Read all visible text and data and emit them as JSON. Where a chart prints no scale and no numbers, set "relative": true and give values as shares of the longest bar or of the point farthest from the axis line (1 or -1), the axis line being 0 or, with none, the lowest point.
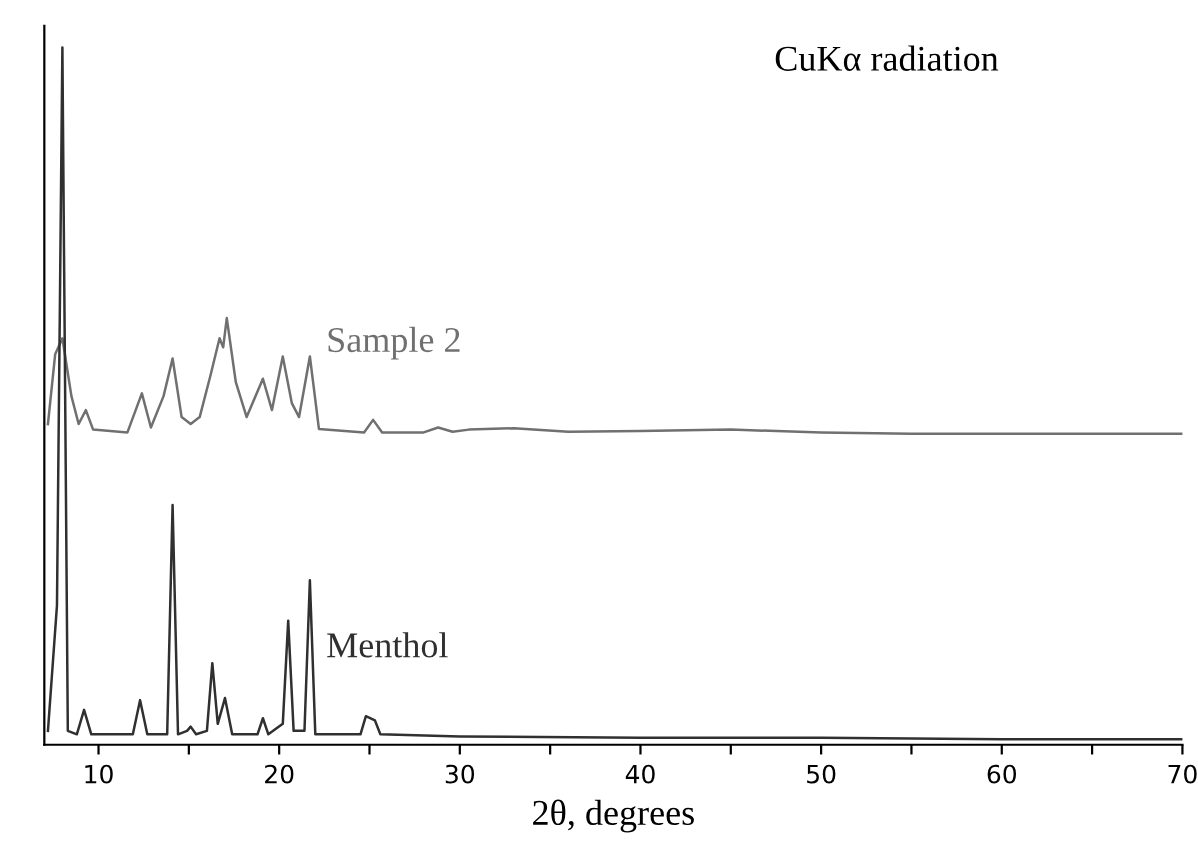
{
  "chart_data": {
    "type": "line",
    "relative": true,
    "xlabel": "2θ, degrees",
    "xlim": [
      7,
      70
    ],
    "xticks": [
      10,
      {
        "value": 15,
        "label": null
      },
      20,
      {
        "value": 25,
        "label": null
      },
      30,
      {
        "value": 35,
        "label": null
      },
      40,
      {
        "value": 45,
        "label": null
      },
      50,
      {
        "value": 55,
        "label": null
      },
      60,
      {
        "value": 65,
        "label": null
      },
      70
    ],
    "annotations": [
      "CuKα radiation"
    ],
    "grid": false,
    "legend": false,
    "marker": "none",
    "line_style": "solid",
    "series": [
      {
        "name": "Sample 2",
        "color": "#707070",
        "x": [
          7.2,
          7.6,
          8.0,
          8.5,
          8.9,
          9.3,
          9.7,
          11.6,
          12.4,
          12.9,
          13.6,
          14.1,
          14.6,
          15.1,
          15.6,
          16.2,
          16.7,
          16.9,
          17.1,
          17.6,
          18.2,
          19.1,
          19.6,
          20.2,
          20.7,
          21.1,
          21.7,
          22.2,
          24.7,
          25.2,
          25.7,
          28.0,
          28.8,
          29.6,
          30.5,
          33.0,
          36.0,
          40.0,
          45.0,
          50.0,
          55.0,
          60.0,
          65.0,
          70.0
        ],
        "values": [
          0.46,
          0.56,
          0.583,
          0.5,
          0.46,
          0.48,
          0.452,
          0.448,
          0.504,
          0.455,
          0.5,
          0.554,
          0.47,
          0.46,
          0.47,
          0.53,
          0.583,
          0.57,
          0.612,
          0.52,
          0.47,
          0.525,
          0.48,
          0.557,
          0.49,
          0.47,
          0.557,
          0.453,
          0.448,
          0.466,
          0.448,
          0.448,
          0.455,
          0.449,
          0.452,
          0.454,
          0.449,
          0.45,
          0.452,
          0.448,
          0.446,
          0.446,
          0.446,
          0.446
        ]
      },
      {
        "name": "Menthol",
        "color": "#303030",
        "x": [
          7.2,
          7.7,
          8.0,
          8.3,
          8.8,
          9.2,
          9.6,
          11.9,
          12.3,
          12.7,
          13.8,
          14.1,
          14.4,
          14.9,
          15.1,
          15.4,
          16.0,
          16.3,
          16.6,
          17.0,
          17.4,
          18.8,
          19.1,
          19.4,
          20.2,
          20.5,
          20.8,
          21.4,
          21.7,
          22.0,
          24.5,
          24.8,
          25.3,
          25.6,
          30.0,
          40.0,
          50.0,
          60.0,
          70.0
        ],
        "values": [
          0.02,
          0.2,
          1.0,
          0.02,
          0.015,
          0.05,
          0.015,
          0.015,
          0.064,
          0.015,
          0.015,
          0.344,
          0.015,
          0.02,
          0.026,
          0.015,
          0.02,
          0.117,
          0.03,
          0.067,
          0.015,
          0.015,
          0.038,
          0.015,
          0.03,
          0.178,
          0.02,
          0.02,
          0.236,
          0.015,
          0.015,
          0.041,
          0.035,
          0.015,
          0.012,
          0.01,
          0.01,
          0.008,
          0.008
        ]
      }
    ]
  }
}
